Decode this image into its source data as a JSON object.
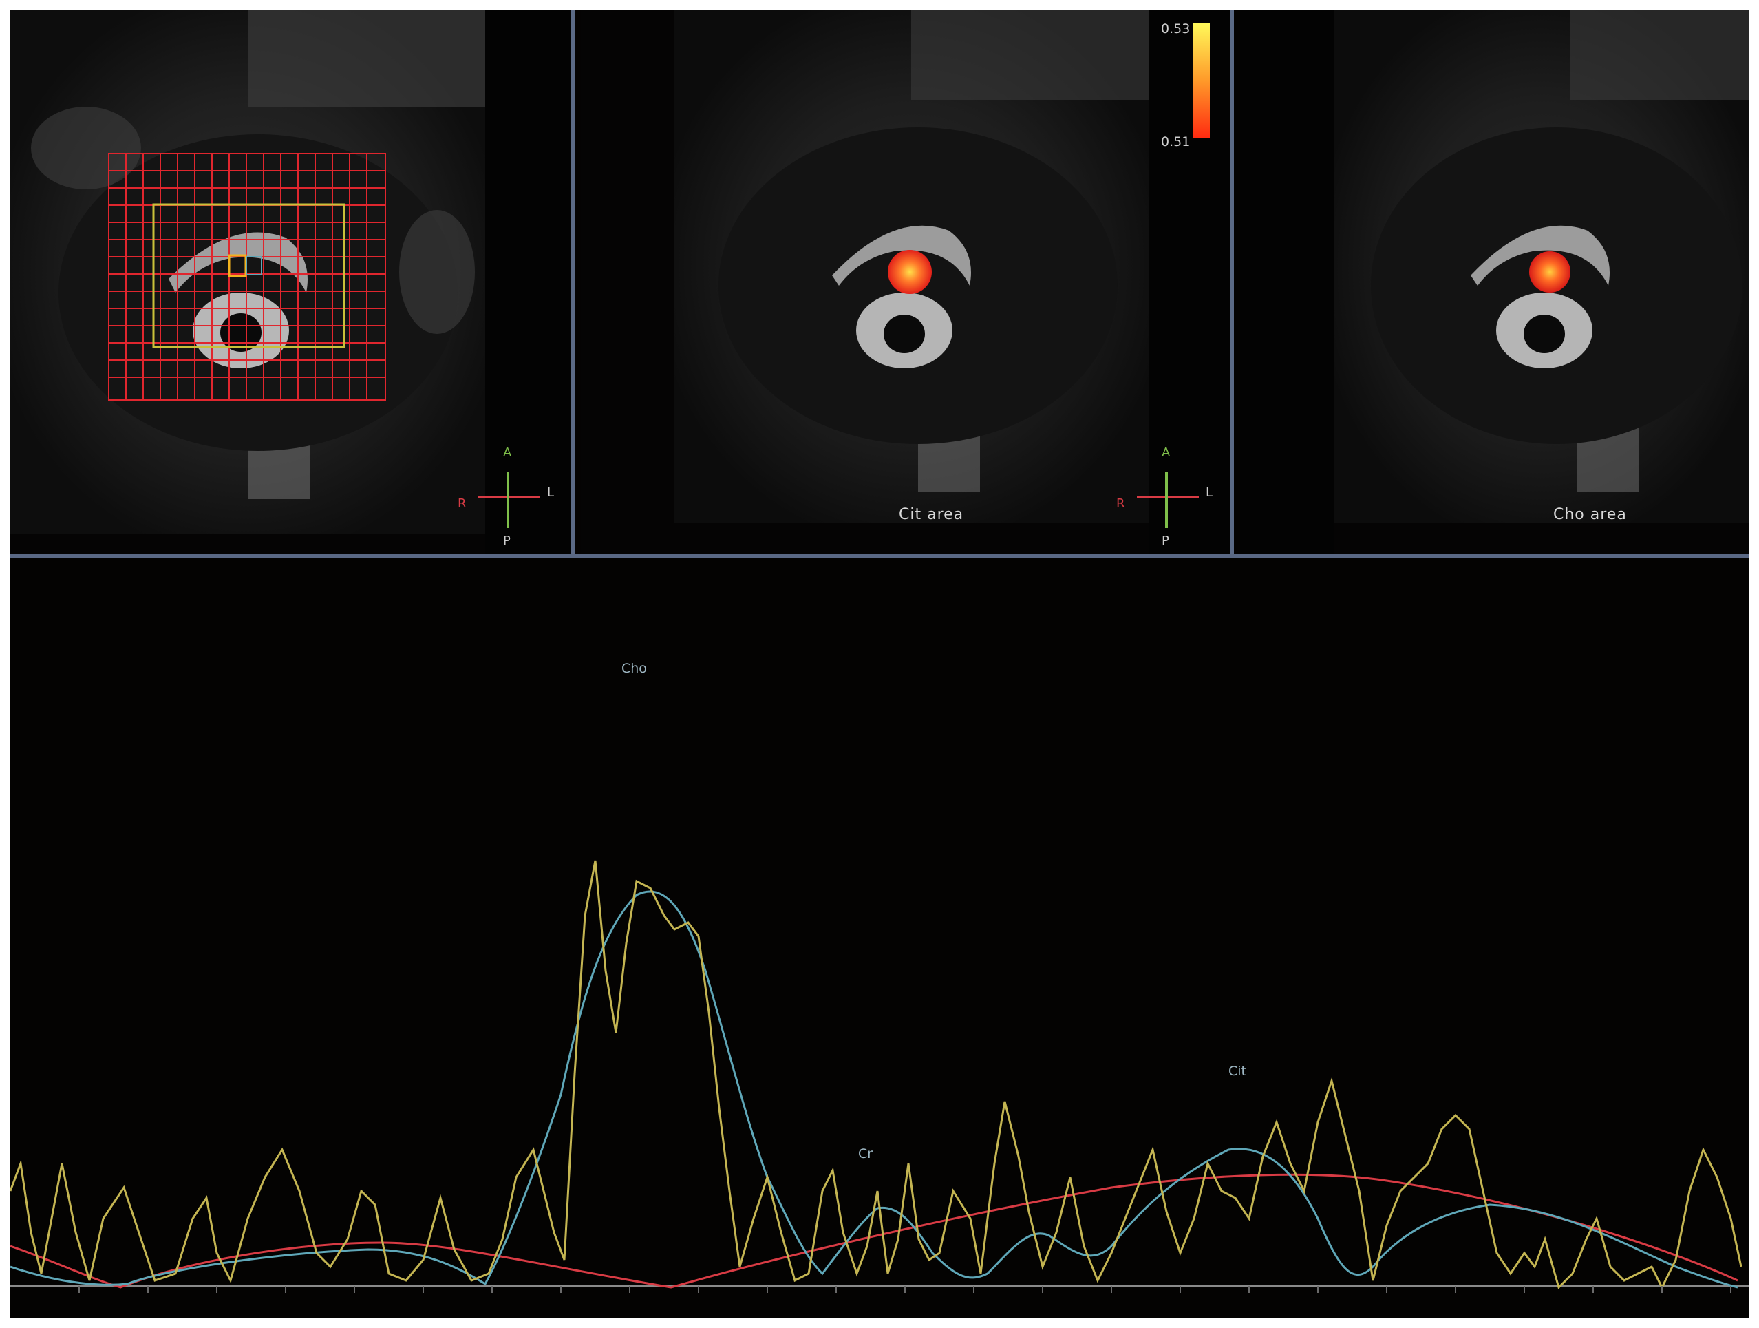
{
  "viewports": [
    {
      "name": "localizer-grid-view",
      "area_label": ""
    },
    {
      "name": "cit-area-view",
      "area_label": "Cit area"
    },
    {
      "name": "cho-area-view",
      "area_label": "Cho area"
    }
  ],
  "orientation": {
    "anterior": "A",
    "posterior": "P",
    "right": "R",
    "left": "L"
  },
  "colorbar": {
    "max_label": "0.53",
    "min_label": "0.51",
    "colors": [
      "#fffa5a",
      "#ff9a2a",
      "#ff2a10"
    ]
  },
  "colors": {
    "grid": "#e0262e",
    "voi": "#c9c13a",
    "selected_voxel": "#f2b21e",
    "fit_curve": "#5fa7b8",
    "raw_spectrum": "#c4b552",
    "baseline": "#d83b44",
    "separator": "#5c6a86",
    "background": "#050303"
  },
  "spectrum": {
    "peak_labels": {
      "cho": "Cho",
      "cr": "Cr",
      "cit": "Cit"
    }
  }
}
